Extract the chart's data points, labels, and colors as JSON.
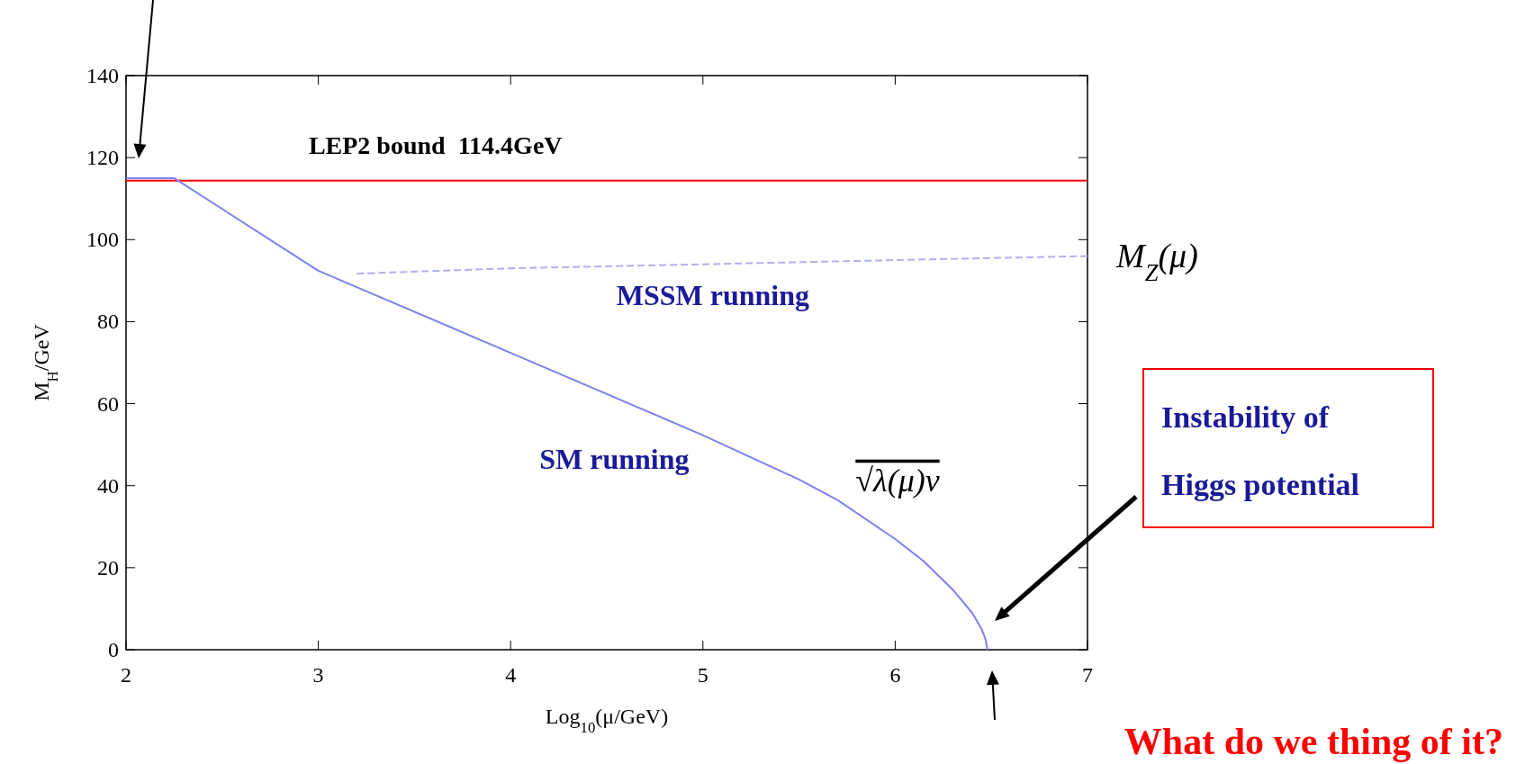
{
  "chart_data": {
    "type": "line",
    "xlabel": "Log$_{10}$(μ/GeV)",
    "ylabel": "M$_{H}$/GeV",
    "xlim": [
      2,
      7
    ],
    "ylim": [
      0,
      140
    ],
    "xticks": [
      2,
      3,
      4,
      5,
      6,
      7
    ],
    "yticks": [
      0,
      20,
      40,
      60,
      80,
      100,
      120,
      140
    ],
    "grid": false,
    "series": [
      {
        "name": "SM running",
        "color": "#8080f0",
        "line_style": "solid",
        "x": [
          2,
          2.25,
          3,
          4,
          5,
          5.5,
          5.7,
          6,
          6.15,
          6.3,
          6.4,
          6.45,
          6.47,
          6.48
        ],
        "values": [
          115,
          115,
          92.4,
          72.4,
          52.3,
          41.5,
          36.5,
          27,
          21.5,
          14.6,
          9,
          5,
          2.5,
          0
        ]
      },
      {
        "name": "MSSM running",
        "color": "#b0b0ee",
        "line_style": "dashed",
        "x": [
          3.2,
          4,
          5,
          6,
          7
        ],
        "values": [
          91.7,
          93,
          94,
          95,
          96
        ]
      }
    ],
    "ref_lines": [
      {
        "axis": "y",
        "value": 114.4,
        "label": "LEP2 bound  114.4GeV",
        "color": "#ff0000"
      }
    ],
    "annotations": [
      {
        "text": "√λ(μ)v",
        "x": 5.7,
        "y": 36.5
      },
      {
        "text": "M$_{Z}$(μ)",
        "x": 7,
        "y": 96
      },
      "Instability of Higgs potential",
      "What do we thing of it?"
    ]
  }
}
